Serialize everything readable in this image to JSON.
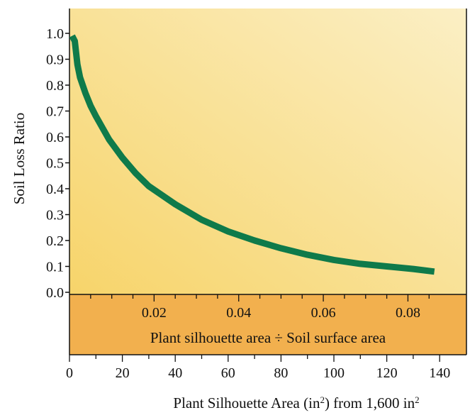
{
  "chart_data": {
    "type": "line",
    "ylabel": "Soil Loss Ratio",
    "ylim": [
      0.0,
      1.0
    ],
    "yticks": [
      "0.0",
      "0.1",
      "0.2",
      "0.3",
      "0.4",
      "0.5",
      "0.6",
      "0.7",
      "0.8",
      "0.9",
      "1.0"
    ],
    "xlim": [
      0,
      144
    ],
    "xticks": [
      "0",
      "20",
      "40",
      "60",
      "80",
      "100",
      "120",
      "140"
    ],
    "xlabel_parts": [
      "Plant Silhouette Area (in",
      "2",
      ") from 1,600 in",
      "2"
    ],
    "secondary_axis": {
      "label": "Plant silhouette area ÷ Soil surface area",
      "ticks": [
        "0.02",
        "0.04",
        "0.06",
        "0.08"
      ],
      "tick_positions_x": [
        32,
        64,
        96,
        128
      ]
    },
    "grid": false,
    "series": [
      {
        "color": "#0f7a4a",
        "x": [
          1,
          2,
          3,
          4,
          6,
          8,
          10,
          15,
          20,
          25,
          30,
          40,
          50,
          60,
          70,
          80,
          90,
          100,
          110,
          120,
          130,
          138
        ],
        "y": [
          0.99,
          0.97,
          0.88,
          0.83,
          0.77,
          0.72,
          0.68,
          0.59,
          0.52,
          0.46,
          0.41,
          0.34,
          0.28,
          0.235,
          0.2,
          0.17,
          0.145,
          0.125,
          0.11,
          0.1,
          0.09,
          0.08
        ]
      }
    ],
    "colors": {
      "plot_bg_from": "#f7d46a",
      "plot_bg_to": "#fbefc5",
      "band_bg": "#f2b04e",
      "axis": "#111111"
    }
  }
}
